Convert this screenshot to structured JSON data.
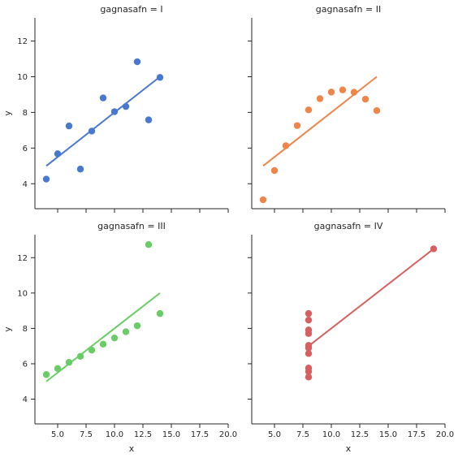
{
  "chart_data": [
    {
      "type": "scatter",
      "title": "gagnasafn = I",
      "xlabel": "",
      "ylabel": "y",
      "color": "#4878d0",
      "xlim": [
        3,
        20
      ],
      "ylim": [
        2.6,
        13.3
      ],
      "xticks": [],
      "yticks": [
        "4",
        "6",
        "8",
        "10",
        "12"
      ],
      "x": [
        10,
        8,
        13,
        9,
        11,
        14,
        6,
        4,
        12,
        7,
        5
      ],
      "y": [
        8.04,
        6.95,
        7.58,
        8.81,
        8.33,
        9.96,
        7.24,
        4.26,
        10.84,
        4.82,
        5.68
      ],
      "fit": [
        [
          4,
          5.0
        ],
        [
          14,
          10.0
        ]
      ]
    },
    {
      "type": "scatter",
      "title": "gagnasafn = II",
      "xlabel": "",
      "ylabel": "",
      "color": "#ee854a",
      "xlim": [
        3,
        20
      ],
      "ylim": [
        2.6,
        13.3
      ],
      "xticks": [],
      "yticks": [],
      "x": [
        10,
        8,
        13,
        9,
        11,
        14,
        6,
        4,
        12,
        7,
        5
      ],
      "y": [
        9.14,
        8.14,
        8.74,
        8.77,
        9.26,
        8.1,
        6.13,
        3.1,
        9.13,
        7.26,
        4.74
      ],
      "fit": [
        [
          4,
          5.0
        ],
        [
          14,
          10.0
        ]
      ]
    },
    {
      "type": "scatter",
      "title": "gagnasafn = III",
      "xlabel": "x",
      "ylabel": "y",
      "color": "#6acc64",
      "xlim": [
        3,
        20
      ],
      "ylim": [
        2.6,
        13.3
      ],
      "xticks": [
        "5.0",
        "7.5",
        "10.0",
        "12.5",
        "15.0",
        "17.5",
        "20.0"
      ],
      "yticks": [
        "4",
        "6",
        "8",
        "10",
        "12"
      ],
      "x": [
        10,
        8,
        13,
        9,
        11,
        14,
        6,
        4,
        12,
        7,
        5
      ],
      "y": [
        7.46,
        6.77,
        12.74,
        7.11,
        7.81,
        8.84,
        6.08,
        5.39,
        8.15,
        6.42,
        5.73
      ],
      "fit": [
        [
          4,
          5.0
        ],
        [
          14,
          10.0
        ]
      ]
    },
    {
      "type": "scatter",
      "title": "gagnasafn = IV",
      "xlabel": "x",
      "ylabel": "",
      "color": "#d65f5f",
      "xlim": [
        3,
        20
      ],
      "ylim": [
        2.6,
        13.3
      ],
      "xticks": [
        "5.0",
        "7.5",
        "10.0",
        "12.5",
        "15.0",
        "17.5",
        "20.0"
      ],
      "yticks": [],
      "x": [
        8,
        8,
        8,
        8,
        8,
        8,
        8,
        19,
        8,
        8,
        8
      ],
      "y": [
        6.58,
        5.76,
        7.71,
        8.84,
        8.47,
        7.04,
        5.25,
        12.5,
        5.56,
        7.91,
        6.89
      ],
      "fit": [
        [
          8,
          7.0
        ],
        [
          19,
          12.5
        ]
      ]
    }
  ]
}
